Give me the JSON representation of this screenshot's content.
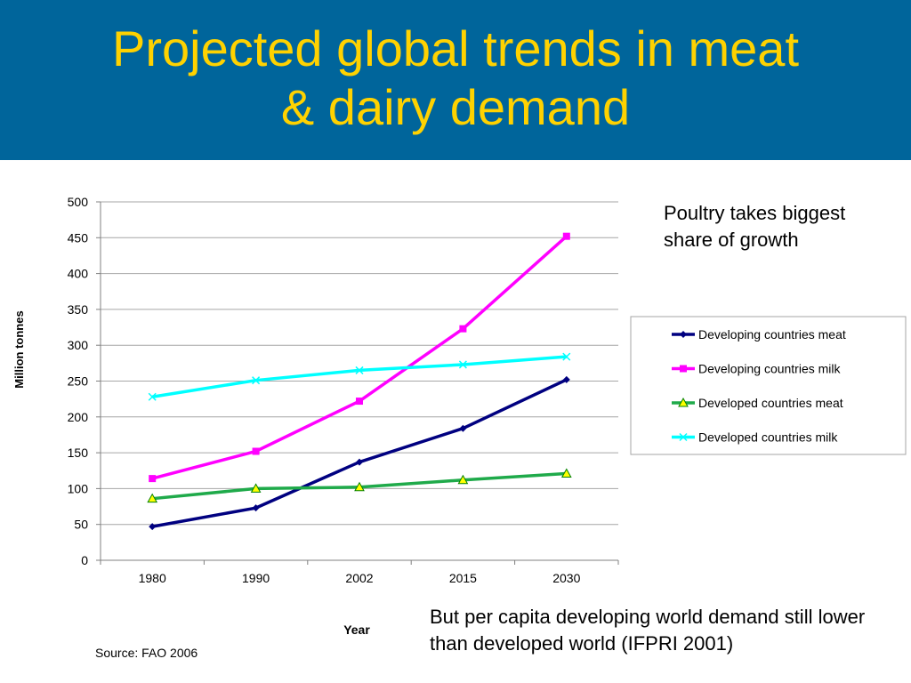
{
  "slide": {
    "title_line1": "Projected global trends in meat",
    "title_line2": "& dairy demand",
    "note_top": "Poultry takes biggest share of growth",
    "note_bottom": "But per capita developing world demand still lower than developed world (IFPRI 2001)",
    "source": "Source: FAO 2006",
    "header_color": "#00659b",
    "title_color": "#ffd200"
  },
  "chart_data": {
    "type": "line",
    "xlabel": "Year",
    "ylabel": "Million tonnes",
    "categories": [
      "1980",
      "1990",
      "2002",
      "2015",
      "2030"
    ],
    "ylim": [
      0,
      500
    ],
    "yticks": [
      0,
      50,
      100,
      150,
      200,
      250,
      300,
      350,
      400,
      450,
      500
    ],
    "grid": true,
    "legend_position": "right",
    "series": [
      {
        "name": "Developing countries meat",
        "values": [
          47,
          73,
          137,
          184,
          252
        ],
        "color": "#000080",
        "marker": "diamond"
      },
      {
        "name": "Developing countries milk",
        "values": [
          114,
          152,
          222,
          323,
          452
        ],
        "color": "#ff00ff",
        "marker": "square"
      },
      {
        "name": "Developed countries meat",
        "values": [
          86,
          100,
          102,
          112,
          121
        ],
        "color": "#1faa4a",
        "marker": "triangle"
      },
      {
        "name": "Developed countries milk",
        "values": [
          228,
          251,
          265,
          273,
          284
        ],
        "color": "#00ffff",
        "marker": "x"
      }
    ]
  }
}
